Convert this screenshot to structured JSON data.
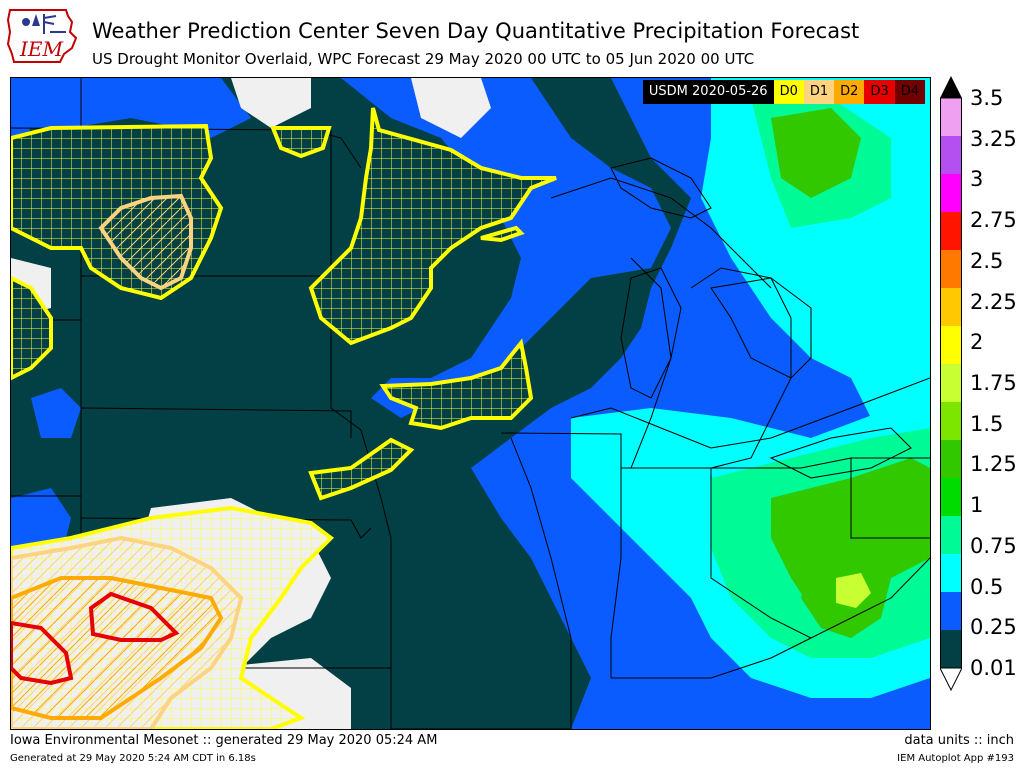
{
  "header": {
    "logo_text": "IEM",
    "title": "Weather Prediction Center Seven Day Quantitative Precipitation Forecast",
    "subtitle": "US Drought Monitor Overlaid, WPC Forecast 29 May 2020 00 UTC to 05 Jun 2020 00 UTC"
  },
  "usdm_legend": {
    "date_label": "USDM 2020-05-26",
    "categories": [
      {
        "label": "D0",
        "color": "#ffff00",
        "text_color": "#000000"
      },
      {
        "label": "D1",
        "color": "#fcd37f",
        "text_color": "#000000"
      },
      {
        "label": "D2",
        "color": "#ffaa00",
        "text_color": "#000000"
      },
      {
        "label": "D3",
        "color": "#e60000",
        "text_color": "#000000"
      },
      {
        "label": "D4",
        "color": "#730000",
        "text_color": "#000000"
      }
    ]
  },
  "colorbar": {
    "ticks": [
      "0.01",
      "0.25",
      "0.5",
      "0.75",
      "1",
      "1.25",
      "1.5",
      "1.75",
      "2",
      "2.25",
      "2.5",
      "2.75",
      "3",
      "3.25",
      "3.5"
    ],
    "colors": [
      "#024045",
      "#0a5cff",
      "#00ffff",
      "#00fa96",
      "#00dc00",
      "#32c800",
      "#7de600",
      "#c8ff32",
      "#ffff00",
      "#ffc800",
      "#ff7800",
      "#ff1400",
      "#ff00ff",
      "#b450f0",
      "#f0a0f0"
    ]
  },
  "footer": {
    "left": "Iowa Environmental Mesonet :: generated 29 May 2020 05:24 AM",
    "left_small": "Generated at 29 May 2020 5:24 AM CDT in 6.18s",
    "right": "data units :: inch",
    "right_small": "IEM Autoplot App #193"
  }
}
